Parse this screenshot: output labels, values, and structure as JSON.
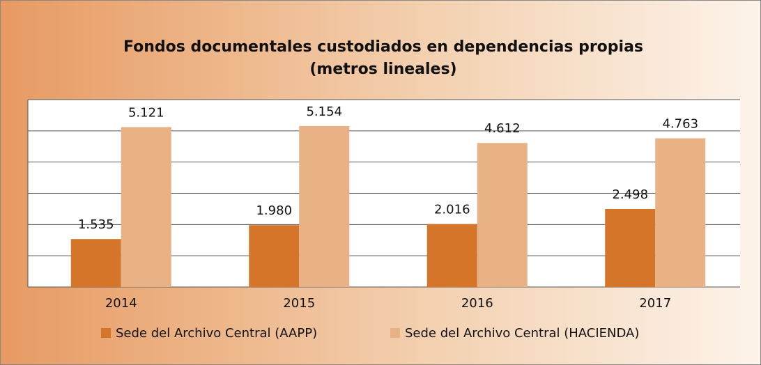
{
  "chart_data": {
    "type": "bar",
    "title": "Fondos documentales custodiados en dependencias propias",
    "subtitle": "(metros lineales)",
    "categories": [
      "2014",
      "2015",
      "2016",
      "2017"
    ],
    "series": [
      {
        "name": "Sede del Archivo Central (AAPP)",
        "color": "#d4752a",
        "values": [
          1535,
          1980,
          2016,
          2498
        ],
        "value_labels": [
          "1.535",
          "1.980",
          "2.016",
          "2.498"
        ]
      },
      {
        "name": "Sede del Archivo Central (HACIENDA)",
        "color": "#e9b186",
        "values": [
          5121,
          5154,
          4612,
          4763
        ],
        "value_labels": [
          "5.121",
          "5.154",
          "4.612",
          "4.763"
        ]
      }
    ],
    "ylim": [
      0,
      6000
    ],
    "yticks": [
      0,
      1000,
      2000,
      3000,
      4000,
      5000,
      6000
    ],
    "grid": true
  }
}
